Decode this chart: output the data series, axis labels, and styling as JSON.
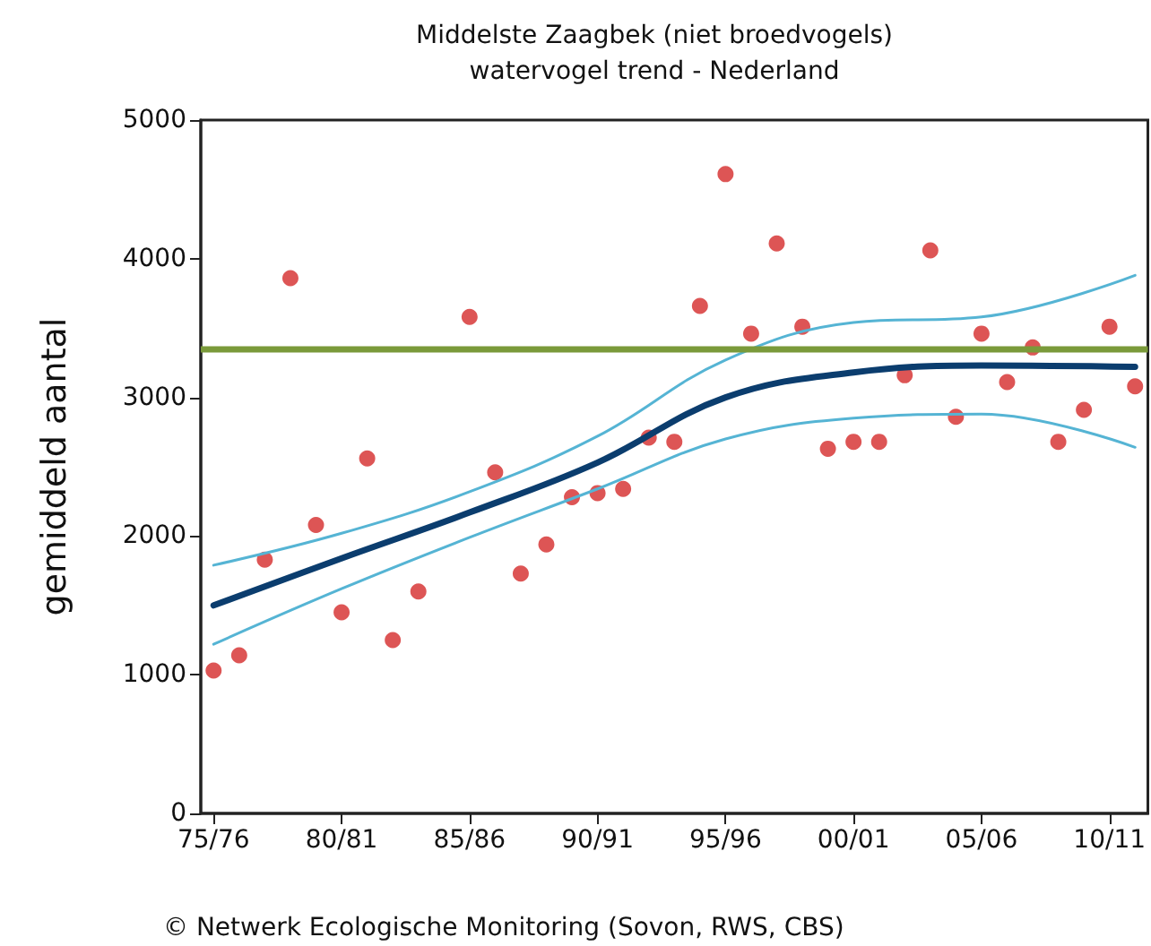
{
  "chart_data": {
    "type": "scatter",
    "title": "Middelste Zaagbek (niet broedvogels)",
    "subtitle": "watervogel trend - Nederland",
    "ylabel": "gemiddeld aantal",
    "annotations": [
      "© Netwerk Ecologische Monitoring (Sovon, RWS, CBS)"
    ],
    "categories": [
      "75/76",
      null,
      null,
      null,
      null,
      "80/81",
      null,
      null,
      null,
      null,
      "85/86",
      null,
      null,
      null,
      null,
      "90/91",
      null,
      null,
      null,
      null,
      "95/96",
      null,
      null,
      null,
      null,
      "00/01",
      null,
      null,
      null,
      null,
      "05/06",
      null,
      null,
      null,
      null,
      "10/11",
      null
    ],
    "ylim": [
      0,
      5000
    ],
    "yticks": [
      0,
      1000,
      2000,
      3000,
      4000,
      5000
    ],
    "grid": false,
    "marker": "circle",
    "series": [
      {
        "color": "#d42a2a",
        "values": [
          1030,
          1140,
          1830,
          3860,
          2080,
          1450,
          2560,
          1250,
          1600,
          null,
          3580,
          2460,
          1730,
          1940,
          2280,
          2310,
          2340,
          2710,
          2680,
          3660,
          4610,
          3460,
          4110,
          3510,
          2630,
          2680,
          2680,
          3160,
          4060,
          2860,
          3460,
          3110,
          3360,
          2680,
          2910,
          3510,
          3080
        ]
      },
      {
        "type": "line",
        "color": "#0b3d6e",
        "marker": "none",
        "values": [
          1500,
          null,
          null,
          null,
          null,
          1840,
          null,
          null,
          null,
          null,
          2170,
          null,
          null,
          null,
          null,
          2530,
          null,
          null,
          null,
          null,
          3000,
          null,
          null,
          null,
          null,
          3180,
          null,
          null,
          null,
          null,
          3230,
          null,
          null,
          null,
          null,
          null,
          3220
        ]
      },
      {
        "type": "line",
        "color": "#55b4d4",
        "marker": "none",
        "values": [
          1790,
          null,
          null,
          null,
          null,
          2020,
          null,
          null,
          null,
          null,
          2320,
          null,
          null,
          null,
          null,
          2720,
          null,
          null,
          null,
          null,
          3270,
          null,
          null,
          null,
          null,
          3540,
          null,
          null,
          null,
          null,
          3580,
          null,
          null,
          null,
          null,
          null,
          3880
        ]
      },
      {
        "type": "line",
        "color": "#55b4d4",
        "marker": "none",
        "values": [
          1220,
          null,
          null,
          null,
          null,
          1620,
          null,
          null,
          null,
          null,
          1990,
          null,
          null,
          null,
          null,
          2340,
          null,
          null,
          null,
          null,
          2700,
          null,
          null,
          null,
          null,
          2850,
          null,
          null,
          null,
          null,
          2880,
          null,
          null,
          null,
          null,
          null,
          2640
        ]
      }
    ],
    "ref_lines": [
      {
        "axis": "y",
        "value": 3350,
        "color": "#7a9a3a"
      }
    ]
  }
}
